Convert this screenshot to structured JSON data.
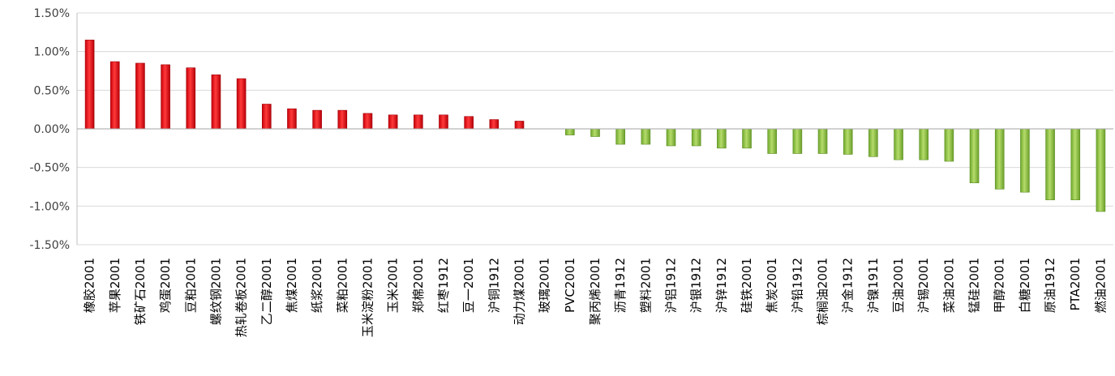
{
  "chart_data": {
    "type": "bar",
    "xlabel": "",
    "ylabel": "",
    "ylim": [
      -1.5,
      1.5
    ],
    "y_ticks": [
      "1.50%",
      "1.00%",
      "0.50%",
      "0.00%",
      "-0.50%",
      "-1.00%",
      "-1.50%"
    ],
    "grid": true,
    "legend": "none",
    "colors": {
      "positive": "#e30613",
      "negative": "#8dc63f",
      "axis": "#bfbfbf",
      "grid": "#d9d9d9"
    },
    "categories": [
      "橡胶2001",
      "苹果2001",
      "铁矿石2001",
      "鸡蛋2001",
      "豆粕2001",
      "螺纹钢2001",
      "热轧卷板2001",
      "乙二醇2001",
      "焦煤2001",
      "纸浆2001",
      "菜粕2001",
      "玉米淀粉2001",
      "玉米2001",
      "郑棉2001",
      "红枣1912",
      "豆一2001",
      "沪铜1912",
      "动力煤2001",
      "玻璃2001",
      "PVC2001",
      "聚丙烯2001",
      "沥青1912",
      "塑料2001",
      "沪铝1912",
      "沪银1912",
      "沪锌1912",
      "硅铁2001",
      "焦炭2001",
      "沪铅1912",
      "棕榈油2001",
      "沪金1912",
      "沪镍1911",
      "豆油2001",
      "沪锡2001",
      "菜油2001",
      "锰硅2001",
      "甲醇2001",
      "白糖2001",
      "原油1912",
      "PTA2001",
      "燃油2001"
    ],
    "values": [
      1.15,
      0.87,
      0.85,
      0.83,
      0.79,
      0.7,
      0.65,
      0.32,
      0.26,
      0.24,
      0.24,
      0.2,
      0.18,
      0.18,
      0.18,
      0.16,
      0.12,
      0.1,
      0.0,
      -0.08,
      -0.1,
      -0.2,
      -0.2,
      -0.22,
      -0.22,
      -0.25,
      -0.25,
      -0.32,
      -0.32,
      -0.32,
      -0.33,
      -0.36,
      -0.4,
      -0.4,
      -0.42,
      -0.7,
      -0.78,
      -0.82,
      -0.92,
      -0.92,
      -1.07
    ]
  }
}
